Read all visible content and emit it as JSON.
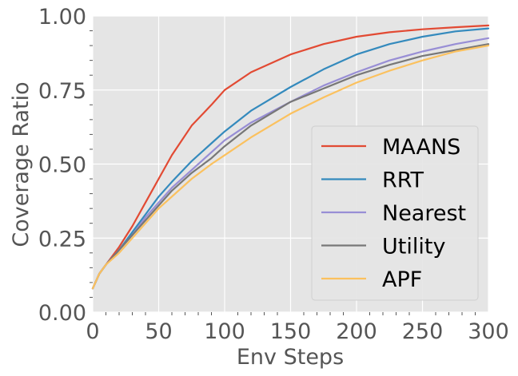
{
  "chart_data": {
    "type": "line",
    "title": "",
    "xlabel": "Env Steps",
    "ylabel": "Coverage Ratio",
    "xlim": [
      0,
      300
    ],
    "ylim": [
      0,
      1.0
    ],
    "x_ticks": [
      0,
      50,
      100,
      150,
      200,
      250,
      300
    ],
    "x_tick_labels": [
      "0",
      "50",
      "100",
      "150",
      "200",
      "250",
      "300"
    ],
    "y_ticks": [
      0,
      0.25,
      0.5,
      0.75,
      1.0
    ],
    "y_tick_labels": [
      "0.00",
      "0.25",
      "0.50",
      "0.75",
      "1.00"
    ],
    "grid": true,
    "style": "ggplot",
    "background_color": "#e5e5e5",
    "legend_position": "center-right",
    "x": [
      0,
      5,
      10,
      20,
      30,
      40,
      50,
      60,
      75,
      90,
      100,
      120,
      150,
      175,
      200,
      225,
      250,
      275,
      300
    ],
    "series": [
      {
        "name": "MAANS",
        "color": "#e24a33",
        "values": [
          0.08,
          0.13,
          0.16,
          0.22,
          0.29,
          0.37,
          0.45,
          0.53,
          0.63,
          0.7,
          0.75,
          0.81,
          0.87,
          0.905,
          0.93,
          0.945,
          0.955,
          0.962,
          0.968
        ]
      },
      {
        "name": "RRT",
        "color": "#348abd",
        "values": [
          0.08,
          0.13,
          0.16,
          0.21,
          0.27,
          0.33,
          0.39,
          0.44,
          0.51,
          0.57,
          0.61,
          0.68,
          0.76,
          0.82,
          0.87,
          0.905,
          0.93,
          0.948,
          0.958
        ]
      },
      {
        "name": "Nearest",
        "color": "#988ed5",
        "values": [
          0.08,
          0.13,
          0.16,
          0.21,
          0.26,
          0.32,
          0.37,
          0.42,
          0.48,
          0.54,
          0.58,
          0.64,
          0.71,
          0.765,
          0.81,
          0.85,
          0.88,
          0.905,
          0.925
        ]
      },
      {
        "name": "Utility",
        "color": "#777777",
        "values": [
          0.08,
          0.13,
          0.16,
          0.21,
          0.26,
          0.31,
          0.36,
          0.41,
          0.47,
          0.52,
          0.56,
          0.63,
          0.71,
          0.755,
          0.8,
          0.835,
          0.865,
          0.885,
          0.905
        ]
      },
      {
        "name": "APF",
        "color": "#fbc15e",
        "values": [
          0.08,
          0.13,
          0.16,
          0.2,
          0.25,
          0.3,
          0.35,
          0.39,
          0.45,
          0.5,
          0.53,
          0.59,
          0.67,
          0.725,
          0.775,
          0.815,
          0.85,
          0.88,
          0.9
        ]
      }
    ]
  }
}
